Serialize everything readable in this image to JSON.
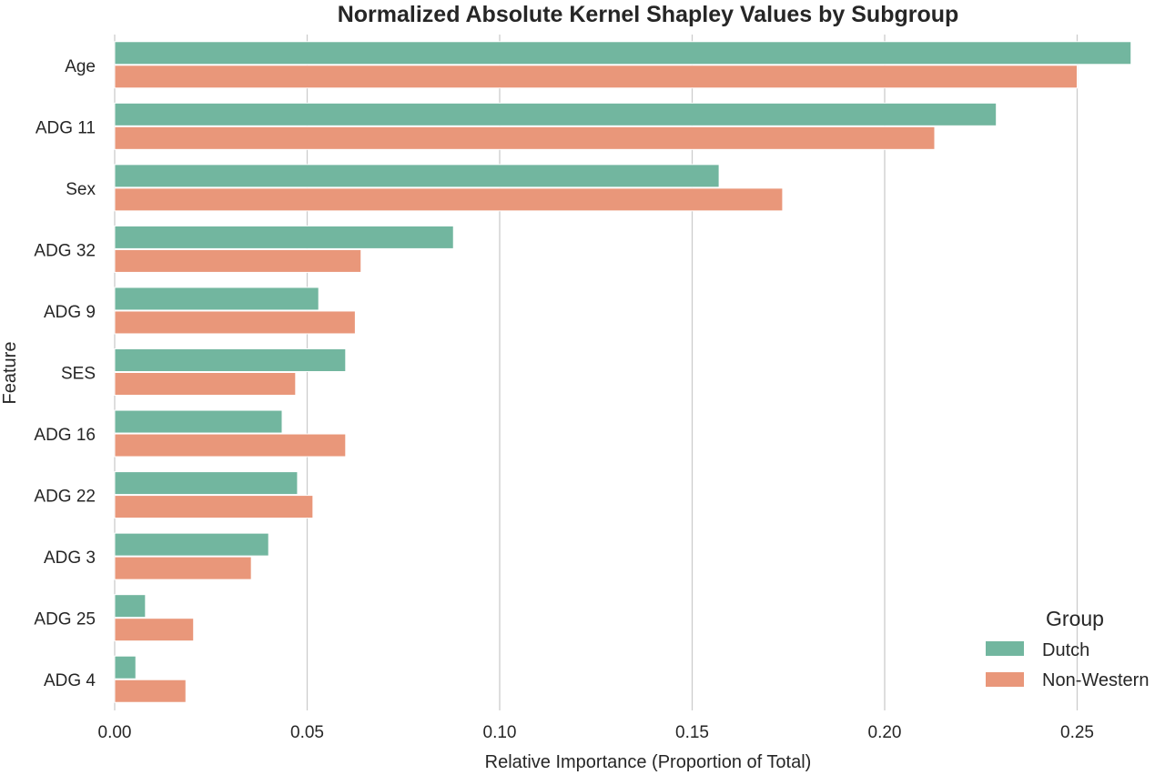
{
  "chart_data": {
    "type": "bar",
    "orientation": "horizontal",
    "title": "Normalized Absolute Kernel Shapley Values by Subgroup",
    "xlabel": "Relative Importance (Proportion of Total)",
    "ylabel": "Feature",
    "xlim": [
      0,
      0.265
    ],
    "xticks": [
      "0.00",
      "0.05",
      "0.10",
      "0.15",
      "0.20",
      "0.25"
    ],
    "xtick_values": [
      0,
      0.05,
      0.1,
      0.15,
      0.2,
      0.25
    ],
    "grid": "vertical",
    "categories": [
      "Age",
      "ADG 11",
      "Sex",
      "ADG 32",
      "ADG 9",
      "SES",
      "ADG 16",
      "ADG 22",
      "ADG 3",
      "ADG 25",
      "ADG 4"
    ],
    "series": [
      {
        "name": "Dutch",
        "color": "#72b69f",
        "values": [
          0.264,
          0.229,
          0.157,
          0.088,
          0.053,
          0.06,
          0.0435,
          0.0475,
          0.04,
          0.008,
          0.0055
        ]
      },
      {
        "name": "Non-Western",
        "color": "#e9977a",
        "values": [
          0.25,
          0.213,
          0.1735,
          0.064,
          0.0625,
          0.047,
          0.06,
          0.0515,
          0.0355,
          0.0205,
          0.0185
        ]
      }
    ],
    "legend": {
      "title": "Group",
      "placement": "bottom-right"
    }
  }
}
